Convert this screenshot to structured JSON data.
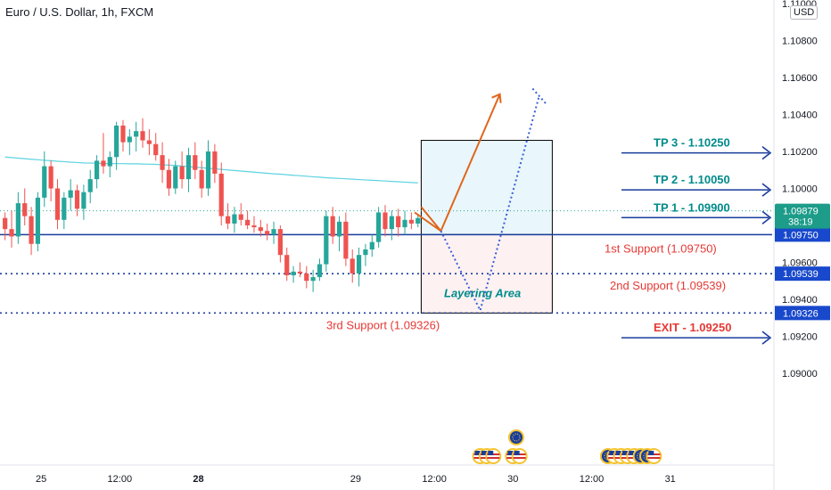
{
  "title": "Euro / U.S. Dollar, 1h, FXCM",
  "currency": "USD",
  "colors": {
    "up": "#26a69a",
    "down": "#ef5350",
    "ma": "#5dd3e0",
    "level_blue": "#1a3d9c",
    "tp_teal": "#008b8b",
    "support_red": "#e53935",
    "profit_zone": "#e9f6fb",
    "loss_zone": "#fdf1f1",
    "orange": "#e0661c",
    "price_tag": "#1d9c89",
    "level_tag": "#1848cc"
  },
  "chart_data": {
    "type": "candlestick",
    "y_ticks": [
      "1.09000",
      "1.09200",
      "1.09400",
      "1.09600",
      "1.09750",
      "1.09800",
      "1.10000",
      "1.10200",
      "1.10400",
      "1.10600",
      "1.10800",
      "1.11000"
    ],
    "y_tick_values": [
      1.09,
      1.092,
      1.094,
      1.096,
      1.0975,
      1.098,
      1.1,
      1.102,
      1.104,
      1.106,
      1.108,
      1.11
    ],
    "x_ticks": [
      {
        "label": "25",
        "t": 6,
        "bold": false
      },
      {
        "label": "12:00",
        "t": 18,
        "bold": false
      },
      {
        "label": "28",
        "t": 30,
        "bold": true
      },
      {
        "label": "29",
        "t": 54,
        "bold": false
      },
      {
        "label": "12:00",
        "t": 66,
        "bold": false
      },
      {
        "label": "30",
        "t": 78,
        "bold": false
      },
      {
        "label": "12:00",
        "t": 90,
        "bold": false
      },
      {
        "label": "31",
        "t": 102,
        "bold": false
      }
    ],
    "candles": [
      [
        1.0984,
        1.0987,
        1.0972,
        1.0978
      ],
      [
        1.0978,
        1.0988,
        1.0968,
        1.0974
      ],
      [
        1.0974,
        1.0998,
        1.097,
        1.0992
      ],
      [
        1.0992,
        1.1,
        1.098,
        1.0985
      ],
      [
        1.0985,
        1.099,
        1.0964,
        1.097
      ],
      [
        1.097,
        1.0998,
        1.0966,
        1.0995
      ],
      [
        1.0995,
        1.102,
        1.099,
        1.1012
      ],
      [
        1.1012,
        1.1015,
        1.0993,
        1.1
      ],
      [
        1.1,
        1.1005,
        1.0978,
        1.0983
      ],
      [
        1.0983,
        1.0998,
        1.0978,
        1.0995
      ],
      [
        1.0995,
        1.1005,
        1.0988,
        1.0999
      ],
      [
        1.0999,
        1.1002,
        1.0985,
        1.0989
      ],
      [
        1.0989,
        1.1002,
        1.0983,
        1.0998
      ],
      [
        1.0998,
        1.101,
        1.0992,
        1.1005
      ],
      [
        1.1005,
        1.1018,
        1.1,
        1.1015
      ],
      [
        1.1015,
        1.103,
        1.1008,
        1.1012
      ],
      [
        1.1012,
        1.102,
        1.1006,
        1.1017
      ],
      [
        1.1017,
        1.1036,
        1.101,
        1.1034
      ],
      [
        1.1034,
        1.1037,
        1.102,
        1.1025
      ],
      [
        1.1025,
        1.1032,
        1.1018,
        1.1028
      ],
      [
        1.1028,
        1.1036,
        1.102,
        1.1031
      ],
      [
        1.1031,
        1.1038,
        1.1022,
        1.1026
      ],
      [
        1.1026,
        1.1032,
        1.1018,
        1.1024
      ],
      [
        1.1024,
        1.103,
        1.1015,
        1.1018
      ],
      [
        1.1018,
        1.1025,
        1.1003,
        1.101
      ],
      [
        1.101,
        1.1016,
        1.0996,
        1.1
      ],
      [
        1.1,
        1.1015,
        1.0997,
        1.1012
      ],
      [
        1.1012,
        1.102,
        1.1,
        1.1005
      ],
      [
        1.1005,
        1.1022,
        1.0998,
        1.1018
      ],
      [
        1.1018,
        1.1025,
        1.1005,
        1.101
      ],
      [
        1.101,
        1.1015,
        1.0995,
        1.1
      ],
      [
        1.1,
        1.1026,
        1.0996,
        1.102
      ],
      [
        1.102,
        1.1024,
        1.1003,
        1.1008
      ],
      [
        1.1008,
        1.1014,
        1.098,
        1.0985
      ],
      [
        1.0985,
        1.0992,
        1.0978,
        1.0981
      ],
      [
        1.0981,
        1.099,
        1.0976,
        1.0986
      ],
      [
        1.0986,
        1.0992,
        1.098,
        1.0983
      ],
      [
        1.0983,
        1.0988,
        1.0978,
        1.098
      ],
      [
        1.098,
        1.0985,
        1.0976,
        1.0979
      ],
      [
        1.0979,
        1.0983,
        1.0974,
        1.0977
      ],
      [
        1.0977,
        1.0981,
        1.0972,
        1.0975
      ],
      [
        1.0975,
        1.0982,
        1.097,
        1.0978
      ],
      [
        1.0978,
        1.098,
        1.096,
        1.0964
      ],
      [
        1.0964,
        1.0968,
        1.095,
        1.0953
      ],
      [
        1.0953,
        1.0958,
        1.0949,
        1.0955
      ],
      [
        1.0955,
        1.096,
        1.0952,
        1.0954
      ],
      [
        1.0954,
        1.0958,
        1.0946,
        1.095
      ],
      [
        1.095,
        1.0956,
        1.0944,
        1.0952
      ],
      [
        1.0952,
        1.0962,
        1.095,
        1.0959
      ],
      [
        1.0959,
        1.0988,
        1.0955,
        1.0985
      ],
      [
        1.0985,
        1.099,
        1.097,
        1.0974
      ],
      [
        1.0974,
        1.0985,
        1.0966,
        1.0982
      ],
      [
        1.0982,
        1.0987,
        1.0958,
        1.0962
      ],
      [
        1.0962,
        1.0967,
        1.0949,
        1.0954
      ],
      [
        1.0954,
        1.0968,
        1.0947,
        1.0964
      ],
      [
        1.0964,
        1.097,
        1.0958,
        1.0967
      ],
      [
        1.0967,
        1.0975,
        1.0963,
        1.0971
      ],
      [
        1.0971,
        1.099,
        1.0968,
        1.0987
      ],
      [
        1.0987,
        1.0991,
        1.0974,
        1.0978
      ],
      [
        1.0978,
        1.0988,
        1.0972,
        1.0985
      ],
      [
        1.0985,
        1.0989,
        1.0974,
        1.0979
      ],
      [
        1.0979,
        1.0988,
        1.0975,
        1.0983
      ],
      [
        1.0983,
        1.0987,
        1.0978,
        1.0981
      ],
      [
        1.0981,
        1.0986,
        1.0979,
        1.0984
      ]
    ],
    "moving_average": [
      1.1017,
      1.10167,
      1.10164,
      1.10161,
      1.10158,
      1.10155,
      1.10152,
      1.1015,
      1.10147,
      1.10145,
      1.10142,
      1.1014,
      1.10138,
      1.10137,
      1.10136,
      1.10135,
      1.10134,
      1.10134,
      1.10134,
      1.10133,
      1.10133,
      1.10132,
      1.10131,
      1.1013,
      1.10128,
      1.10126,
      1.10124,
      1.10121,
      1.10118,
      1.10115,
      1.10112,
      1.10109,
      1.10106,
      1.10103,
      1.101,
      1.10097,
      1.10094,
      1.10091,
      1.10088,
      1.10085,
      1.10082,
      1.10079,
      1.10077,
      1.10074,
      1.10071,
      1.10069,
      1.10066,
      1.10063,
      1.10061,
      1.10058,
      1.10056,
      1.10054,
      1.10052,
      1.1005,
      1.10048,
      1.10046,
      1.10044,
      1.10042,
      1.1004,
      1.10038,
      1.10036,
      1.10034,
      1.10032,
      1.1003
    ],
    "levels": [
      {
        "price": 1.0975,
        "style": "solid",
        "tag": "1.09750"
      },
      {
        "price": 1.09539,
        "style": "dotted",
        "tag": "1.09539"
      },
      {
        "price": 1.09326,
        "style": "dotted",
        "tag": "1.09326"
      }
    ],
    "current_price": {
      "value": "1.09879",
      "countdown": "38:19",
      "price": 1.09879
    },
    "zones": {
      "profit": [
        1.0975,
        1.1026
      ],
      "loss": [
        1.09326,
        1.0975
      ],
      "t_start": 64,
      "t_end": 84
    },
    "projections": {
      "orange_path": [
        [
          67,
          1.0977
        ],
        [
          76,
          1.1051
        ]
      ],
      "orange_arrowhead": [
        [
          63,
          1.0987
        ],
        [
          67,
          1.0977
        ],
        [
          64,
          1.099
        ]
      ],
      "blue_path": [
        [
          67,
          1.0977
        ],
        [
          73,
          1.0934
        ],
        [
          82,
          1.105
        ]
      ],
      "blue_arrowhead": [
        [
          81,
          1.1054
        ],
        [
          82,
          1.105
        ],
        [
          83,
          1.1046
        ]
      ]
    },
    "annotations": {
      "tp3": {
        "text": "TP 3 - 1.10250",
        "price": 1.1025
      },
      "tp2": {
        "text": "TP 2 - 1.10050",
        "price": 1.1005
      },
      "tp1": {
        "text": "TP 1 - 1.09900",
        "price": 1.099
      },
      "support1": {
        "text": "1st Support (1.09750)",
        "price": 1.0975
      },
      "support2": {
        "text": "2nd Support (1.09539)",
        "price": 1.09539
      },
      "support3": {
        "text": "3rd Support (1.09326)",
        "price": 1.09326
      },
      "exit": {
        "text": "EXIT - 1.09250",
        "price": 1.0925
      },
      "layering": {
        "text": "Layering Area",
        "price": 1.0945
      }
    },
    "event_icons": [
      {
        "t": 73,
        "row": 0,
        "kind": "us"
      },
      {
        "t": 74,
        "row": 0,
        "kind": "us"
      },
      {
        "t": 75,
        "row": 0,
        "kind": "us"
      },
      {
        "t": 78,
        "row": 0,
        "kind": "us"
      },
      {
        "t": 79,
        "row": 0,
        "kind": "us"
      },
      {
        "t": 78.5,
        "row": 1,
        "kind": "eu"
      },
      {
        "t": 92.5,
        "row": 0,
        "kind": "eu"
      },
      {
        "t": 93.5,
        "row": 0,
        "kind": "us"
      },
      {
        "t": 94.5,
        "row": 0,
        "kind": "us"
      },
      {
        "t": 95.5,
        "row": 0,
        "kind": "us"
      },
      {
        "t": 96.5,
        "row": 0,
        "kind": "us"
      },
      {
        "t": 97.5,
        "row": 0,
        "kind": "eu"
      },
      {
        "t": 98.5,
        "row": 0,
        "kind": "eu"
      },
      {
        "t": 99.5,
        "row": 0,
        "kind": "us"
      }
    ]
  }
}
